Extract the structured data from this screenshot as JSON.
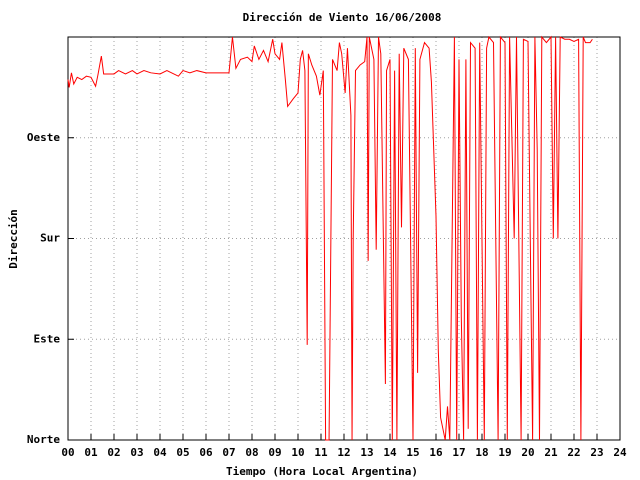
{
  "chart_data": {
    "type": "line",
    "title": "Dirección de Viento 16/06/2008",
    "x_label": "Tiempo (Hora Local Argentina)",
    "y_label": "Dirección",
    "color": "#ff0000",
    "grid": true,
    "xlim": [
      0,
      24
    ],
    "ylim": [
      0,
      360
    ],
    "xticks": [
      {
        "value": 0,
        "label": "00"
      },
      {
        "value": 1,
        "label": "01"
      },
      {
        "value": 2,
        "label": "02"
      },
      {
        "value": 3,
        "label": "03"
      },
      {
        "value": 4,
        "label": "04"
      },
      {
        "value": 5,
        "label": "05"
      },
      {
        "value": 6,
        "label": "06"
      },
      {
        "value": 7,
        "label": "07"
      },
      {
        "value": 8,
        "label": "08"
      },
      {
        "value": 9,
        "label": "09"
      },
      10,
      11,
      12,
      13,
      14,
      15,
      16,
      17,
      18,
      19,
      20,
      21,
      22,
      23,
      24
    ],
    "yticks": [
      {
        "value": 0,
        "label": "Norte"
      },
      {
        "value": 90,
        "label": "Este"
      },
      {
        "value": 180,
        "label": "Sur"
      },
      {
        "value": 270,
        "label": "Oeste"
      }
    ],
    "x": [
      0,
      0.05,
      0.15,
      0.25,
      0.4,
      0.6,
      0.8,
      1.0,
      1.2,
      1.3,
      1.45,
      1.55,
      2.0,
      2.2,
      2.5,
      2.8,
      3.0,
      3.3,
      3.6,
      4.0,
      4.3,
      4.6,
      4.8,
      5.0,
      5.3,
      5.6,
      6.0,
      6.5,
      7.0,
      7.15,
      7.3,
      7.5,
      7.8,
      8.0,
      8.1,
      8.3,
      8.5,
      8.7,
      8.9,
      9.0,
      9.2,
      9.3,
      9.45,
      9.55,
      9.8,
      10.0,
      10.1,
      10.2,
      10.3,
      10.4,
      10.45,
      10.6,
      10.8,
      10.95,
      11.1,
      11.2,
      11.35,
      11.5,
      11.7,
      11.8,
      11.9,
      12.05,
      12.15,
      12.3,
      12.35,
      12.4,
      12.5,
      12.7,
      12.9,
      13.0,
      13.05,
      13.1,
      13.3,
      13.4,
      13.5,
      13.6,
      13.8,
      13.85,
      14.0,
      14.1,
      14.2,
      14.3,
      14.4,
      14.5,
      14.6,
      14.8,
      15.0,
      15.1,
      15.2,
      15.3,
      15.5,
      15.7,
      15.8,
      16.0,
      16.1,
      16.2,
      16.3,
      16.4,
      16.5,
      16.6,
      16.7,
      16.8,
      16.9,
      17.0,
      17.1,
      17.2,
      17.3,
      17.4,
      17.5,
      17.7,
      17.8,
      17.9,
      18.1,
      18.2,
      18.3,
      18.5,
      18.7,
      18.8,
      19.0,
      19.1,
      19.2,
      19.4,
      19.5,
      19.7,
      19.8,
      20.0,
      20.2,
      20.3,
      20.4,
      20.5,
      20.6,
      20.8,
      21.0,
      21.1,
      21.2,
      21.3,
      21.4,
      21.6,
      21.8,
      22.0,
      22.2,
      22.3,
      22.4,
      22.5,
      22.7,
      22.8
    ],
    "values": [
      322,
      315,
      328,
      318,
      324,
      322,
      325,
      324,
      316,
      326,
      343,
      327,
      327,
      330,
      327,
      330,
      327,
      330,
      328,
      327,
      330,
      327,
      325,
      330,
      328,
      330,
      328,
      328,
      328,
      360,
      332,
      340,
      342,
      338,
      352,
      340,
      348,
      338,
      358,
      345,
      340,
      355,
      322,
      298,
      305,
      310,
      340,
      348,
      330,
      85,
      345,
      335,
      325,
      308,
      330,
      0,
      0,
      340,
      330,
      355,
      345,
      310,
      350,
      290,
      0,
      180,
      330,
      335,
      338,
      360,
      160,
      360,
      340,
      170,
      360,
      345,
      50,
      330,
      340,
      0,
      330,
      0,
      345,
      190,
      350,
      340,
      0,
      350,
      60,
      340,
      355,
      350,
      320,
      200,
      80,
      20,
      10,
      0,
      30,
      0,
      180,
      360,
      0,
      340,
      110,
      0,
      340,
      10,
      355,
      350,
      0,
      355,
      0,
      350,
      360,
      355,
      0,
      360,
      355,
      0,
      360,
      180,
      360,
      0,
      358,
      356,
      0,
      360,
      260,
      0,
      360,
      355,
      360,
      180,
      360,
      180,
      360,
      358,
      358,
      356,
      358,
      0,
      360,
      355,
      355,
      358
    ]
  }
}
